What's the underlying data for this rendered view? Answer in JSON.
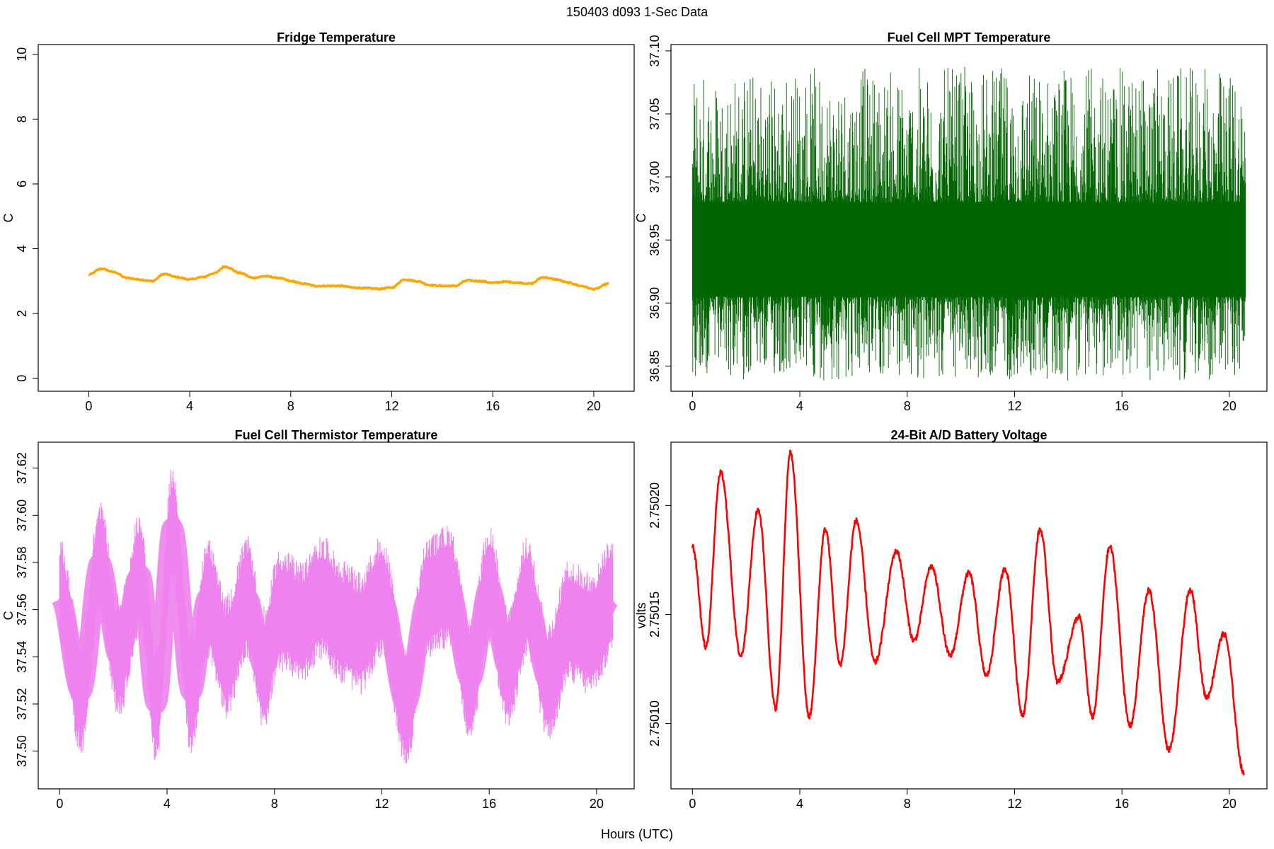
{
  "title": "150403   d093   1-Sec Data",
  "xlabel": "Hours (UTC)",
  "chart_data": [
    {
      "type": "line",
      "title": "Fridge Temperature",
      "xlabel": "",
      "ylabel": "C",
      "xlim": [
        -2,
        21.6
      ],
      "ylim": [
        -0.4,
        10.3
      ],
      "xticks": [
        "0",
        "4",
        "8",
        "12",
        "16",
        "20"
      ],
      "yticks": [
        "0",
        "2",
        "4",
        "6",
        "8",
        "10"
      ],
      "color": "#FFA500",
      "grid": false,
      "series": [
        {
          "x": [
            0,
            0.5,
            1.0,
            1.5,
            2.0,
            2.5,
            3.0,
            3.5,
            4.0,
            4.5,
            5.0,
            5.4,
            6.0,
            6.5,
            7.0,
            7.5,
            8.0,
            8.5,
            9.0,
            9.5,
            10.0,
            10.5,
            11.0,
            11.5,
            12.0,
            12.5,
            13.0,
            13.5,
            14.0,
            14.5,
            15.0,
            15.5,
            16.0,
            16.5,
            17.0,
            17.5,
            18.0,
            18.5,
            19.0,
            19.5,
            20.0,
            20.6
          ],
          "y": [
            3.2,
            3.38,
            3.28,
            3.1,
            3.05,
            3.0,
            3.22,
            3.12,
            3.05,
            3.12,
            3.25,
            3.45,
            3.25,
            3.1,
            3.15,
            3.1,
            3.0,
            2.92,
            2.85,
            2.85,
            2.85,
            2.8,
            2.78,
            2.76,
            2.8,
            3.05,
            3.0,
            2.88,
            2.85,
            2.85,
            3.02,
            3.0,
            2.95,
            2.98,
            2.95,
            2.92,
            3.12,
            3.05,
            2.95,
            2.85,
            2.75,
            2.92
          ]
        }
      ]
    },
    {
      "type": "line",
      "title": "Fuel Cell MPT Temperature",
      "xlabel": "",
      "ylabel": "C",
      "xlim": [
        -0.8,
        21.4
      ],
      "ylim": [
        36.83,
        37.105
      ],
      "xticks": [
        "0",
        "4",
        "8",
        "12",
        "16",
        "20"
      ],
      "yticks": [
        "36.85",
        "36.90",
        "36.95",
        "37.00",
        "37.05",
        "37.10"
      ],
      "color": "#006400",
      "grid": false,
      "series": [
        {
          "x": [
            0,
            20.6
          ],
          "y": [
            36.94,
            36.94
          ],
          "noise_band": [
            36.905,
            36.98
          ],
          "extremes": [
            36.835,
            37.093
          ]
        }
      ]
    },
    {
      "type": "line",
      "title": "Fuel Cell Thermistor Temperature",
      "xlabel": "",
      "ylabel": "C",
      "xlim": [
        -0.8,
        21.4
      ],
      "ylim": [
        37.484,
        37.631
      ],
      "xticks": [
        "0",
        "4",
        "8",
        "12",
        "16",
        "20"
      ],
      "yticks": [
        "37.50",
        "37.52",
        "37.54",
        "37.56",
        "37.58",
        "37.60",
        "37.62"
      ],
      "color": "#EE82EE",
      "grid": false,
      "series": [
        {
          "x": [
            0,
            0.8,
            1.5,
            2.2,
            3.0,
            3.6,
            4.2,
            4.9,
            5.5,
            6.2,
            7.0,
            7.6,
            8.2,
            9.0,
            9.8,
            10.5,
            11.2,
            12.0,
            12.9,
            13.7,
            14.5,
            15.3,
            16.0,
            16.7,
            17.4,
            18.2,
            19.0,
            19.8,
            20.6
          ],
          "y": [
            37.565,
            37.525,
            37.58,
            37.54,
            37.575,
            37.52,
            37.595,
            37.525,
            37.565,
            37.54,
            37.565,
            37.535,
            37.56,
            37.555,
            37.565,
            37.555,
            37.55,
            37.565,
            37.52,
            37.565,
            37.57,
            37.53,
            37.57,
            37.535,
            37.565,
            37.53,
            37.555,
            37.55,
            37.565
          ],
          "noise_amp": 0.022
        }
      ]
    },
    {
      "type": "line",
      "title": "24-Bit A/D Battery Voltage",
      "xlabel": "",
      "ylabel": "volts",
      "xlim": [
        -0.8,
        21.4
      ],
      "ylim": [
        2.75007,
        2.750229
      ],
      "xticks": [
        "0",
        "4",
        "8",
        "12",
        "16",
        "20"
      ],
      "yticks": [
        "2.75010",
        "2.75015",
        "2.75020"
      ],
      "color": "#FF0000",
      "grid": false,
      "series": [
        {
          "x": [
            0,
            0.5,
            1.05,
            1.8,
            2.45,
            3.1,
            3.65,
            4.35,
            4.95,
            5.5,
            6.1,
            6.8,
            7.6,
            8.25,
            8.9,
            9.6,
            10.3,
            10.95,
            11.65,
            12.3,
            12.95,
            13.6,
            14.4,
            14.9,
            15.55,
            16.3,
            17.0,
            17.75,
            18.55,
            19.15,
            19.8,
            20.55
          ],
          "y": [
            2.750181,
            2.750135,
            2.750215,
            2.750131,
            2.750198,
            2.750107,
            2.750224,
            2.750103,
            2.750189,
            2.750127,
            2.750193,
            2.750128,
            2.750179,
            2.750138,
            2.750172,
            2.750131,
            2.750169,
            2.750122,
            2.750171,
            2.750104,
            2.750189,
            2.750119,
            2.750149,
            2.750103,
            2.750181,
            2.750099,
            2.750161,
            2.750088,
            2.750161,
            2.750112,
            2.750141,
            2.750077
          ]
        }
      ]
    }
  ]
}
